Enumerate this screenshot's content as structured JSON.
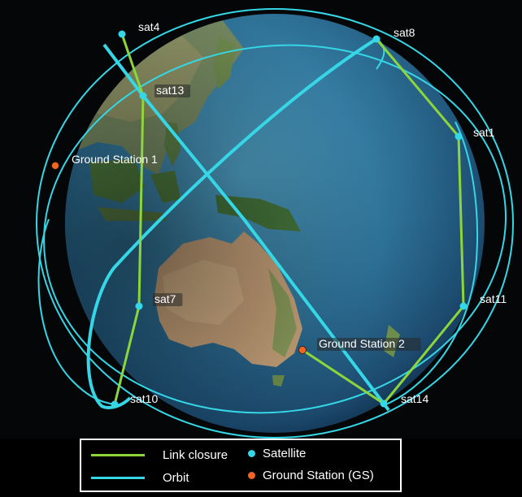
{
  "colors": {
    "link": "#8cd63c",
    "orbit": "#35d6e6",
    "satellite": "#35d6e6",
    "ground_station": "#f26522",
    "space": "#050608"
  },
  "satellites": [
    {
      "id": "sat4",
      "label": "sat4"
    },
    {
      "id": "sat8",
      "label": "sat8"
    },
    {
      "id": "sat13",
      "label": "sat13"
    },
    {
      "id": "sat1",
      "label": "sat1"
    },
    {
      "id": "sat7",
      "label": "sat7"
    },
    {
      "id": "sat11",
      "label": "sat11"
    },
    {
      "id": "sat10",
      "label": "sat10"
    },
    {
      "id": "sat14",
      "label": "sat14"
    }
  ],
  "ground_stations": [
    {
      "id": "gs1",
      "label": "Ground Station 1"
    },
    {
      "id": "gs2",
      "label": "Ground Station 2"
    }
  ],
  "links": [
    [
      "sat4",
      "sat13"
    ],
    [
      "sat13",
      "sat7"
    ],
    [
      "sat7",
      "sat10"
    ],
    [
      "sat8",
      "sat1"
    ],
    [
      "sat1",
      "sat11"
    ],
    [
      "sat11",
      "sat14"
    ],
    [
      "gs2",
      "sat14"
    ]
  ],
  "legend": {
    "link_label": "Link closure",
    "orbit_label": "Orbit",
    "satellite_label": "Satellite",
    "gs_label": "Ground Station (GS)"
  }
}
